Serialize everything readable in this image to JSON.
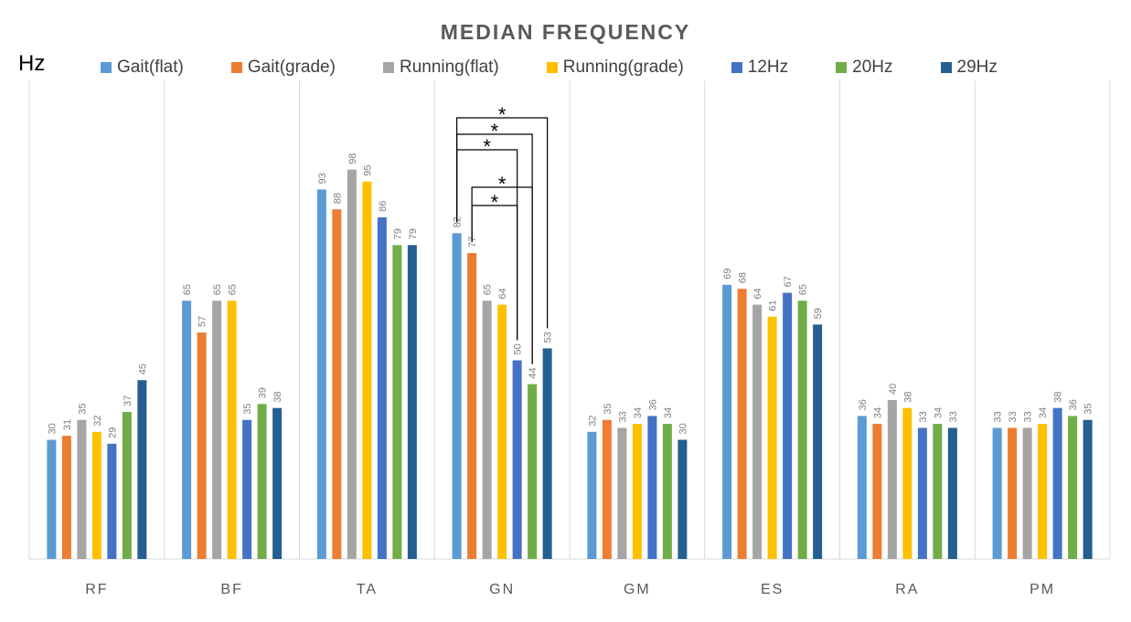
{
  "chart_data": {
    "type": "bar",
    "title": "MEDIAN FREQUENCY",
    "unit_label": "Hz",
    "categories": [
      "RF",
      "BF",
      "TA",
      "GN",
      "GM",
      "ES",
      "RA",
      "PM"
    ],
    "series": [
      {
        "name": "Gait(flat)",
        "color": "#5b9bd5",
        "values": [
          30,
          65,
          93,
          82,
          32,
          69,
          36,
          33
        ]
      },
      {
        "name": "Gait(grade)",
        "color": "#ed7d31",
        "values": [
          31,
          57,
          88,
          77,
          35,
          68,
          34,
          33
        ]
      },
      {
        "name": "Running(flat)",
        "color": "#a5a5a5",
        "values": [
          35,
          65,
          98,
          65,
          33,
          64,
          40,
          33
        ]
      },
      {
        "name": "Running(grade)",
        "color": "#ffc000",
        "values": [
          32,
          65,
          95,
          64,
          34,
          61,
          38,
          34
        ]
      },
      {
        "name": "12Hz",
        "color": "#4472c4",
        "values": [
          29,
          35,
          86,
          50,
          36,
          67,
          33,
          38
        ]
      },
      {
        "name": "20Hz",
        "color": "#70ad47",
        "values": [
          37,
          39,
          79,
          44,
          34,
          65,
          34,
          36
        ]
      },
      {
        "name": "29Hz",
        "color": "#255e91",
        "values": [
          45,
          38,
          79,
          53,
          30,
          59,
          33,
          35
        ]
      }
    ],
    "ylim": [
      0,
      120
    ],
    "grid": "vertical category separators",
    "legend_position": "top",
    "annotations": [
      {
        "category": "GN",
        "from": "Gait(flat)",
        "to": "29Hz",
        "label": "*"
      },
      {
        "category": "GN",
        "from": "Gait(flat)",
        "to": "20Hz",
        "label": "*"
      },
      {
        "category": "GN",
        "from": "Gait(flat)",
        "to": "12Hz",
        "label": "*"
      },
      {
        "category": "GN",
        "from": "Gait(grade)",
        "to": "20Hz",
        "label": "*"
      },
      {
        "category": "GN",
        "from": "Gait(grade)",
        "to": "12Hz",
        "label": "*"
      }
    ]
  }
}
